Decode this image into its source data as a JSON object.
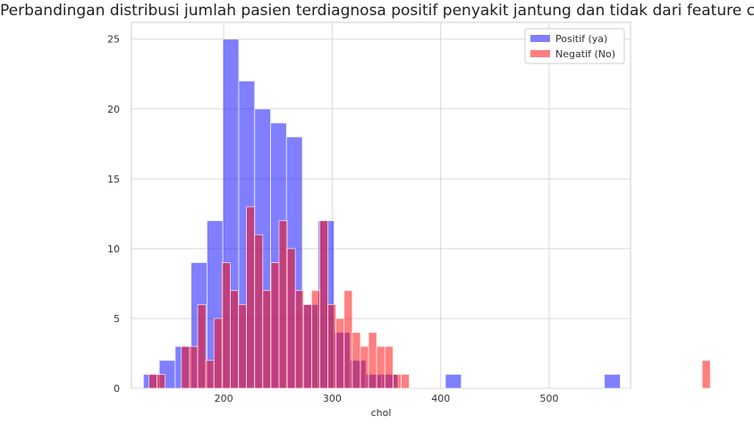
{
  "chart_data": {
    "type": "histogram",
    "title": "Perbandingan distribusi jumlah pasien terdiagnosa positif penyakit jantung dan tidak dari feature chol",
    "xlabel": "chol",
    "ylabel": "",
    "xlim": [
      115,
      575
    ],
    "ylim": [
      0,
      26.2
    ],
    "xticks": [
      200,
      300,
      400,
      500
    ],
    "yticks": [
      0,
      5,
      10,
      15,
      20,
      25
    ],
    "grid": true,
    "legend_position": "top-right",
    "bin_start": 126,
    "bin_width": 15,
    "series": [
      {
        "name": "Positif (ya)",
        "color": "#0000ff",
        "alpha": 0.5,
        "bin_start": 126,
        "bin_width": 14.65,
        "counts": [
          1,
          2,
          3,
          9,
          12,
          25,
          22,
          20,
          19,
          18,
          6,
          12,
          4,
          2,
          1,
          1,
          0,
          0,
          0,
          1,
          0,
          0,
          0,
          0,
          0,
          0,
          0,
          0,
          0,
          1
        ]
      },
      {
        "name": "Negatif (No)",
        "color": "#ff0000",
        "alpha": 0.5,
        "bin_start": 131,
        "bin_width": 7.5,
        "counts": [
          1,
          1,
          0,
          0,
          3,
          3,
          6,
          2,
          5,
          9,
          7,
          6,
          13,
          11,
          7,
          9,
          12,
          10,
          7,
          6,
          7,
          12,
          6,
          5,
          7,
          4,
          3,
          4,
          3,
          3,
          1,
          1,
          0,
          0,
          0,
          0,
          0,
          0,
          0,
          0,
          0,
          0,
          0,
          0,
          0,
          0,
          0,
          0,
          0,
          0,
          0,
          0,
          0,
          0,
          0,
          0,
          0,
          0,
          0,
          0,
          0,
          0,
          0,
          0,
          0,
          0,
          0,
          0,
          2
        ]
      }
    ]
  }
}
